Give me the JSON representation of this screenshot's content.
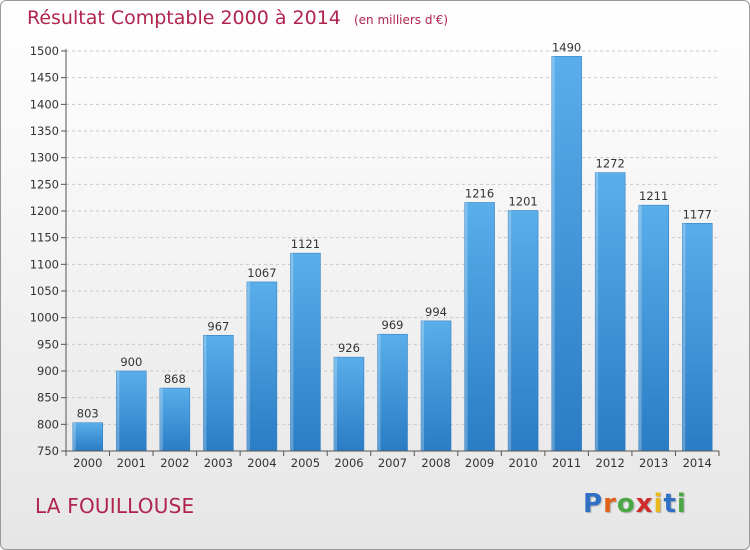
{
  "chart_data": {
    "type": "bar",
    "title": "Résultat Comptable 2000 à 2014",
    "unit": "(en milliers d'€)",
    "categories": [
      "2000",
      "2001",
      "2002",
      "2003",
      "2004",
      "2005",
      "2006",
      "2007",
      "2008",
      "2009",
      "2010",
      "2011",
      "2012",
      "2013",
      "2014"
    ],
    "values": [
      803,
      900,
      868,
      967,
      1067,
      1121,
      926,
      969,
      994,
      1216,
      1201,
      1490,
      1272,
      1211,
      1177
    ],
    "ylim": [
      750,
      1500
    ],
    "yticks": [
      750,
      800,
      850,
      900,
      950,
      1000,
      1050,
      1100,
      1150,
      1200,
      1250,
      1300,
      1350,
      1400,
      1450,
      1500
    ],
    "grid": true,
    "bar_color": "#3d8fd6"
  },
  "footer": {
    "city": "LA FOUILLOUSE"
  },
  "logo": {
    "letters": [
      "P",
      "r",
      "o",
      "x",
      "i",
      "t",
      "i"
    ],
    "colors": [
      "#2f6fc4",
      "#e0621a",
      "#4aa844",
      "#d12c2c",
      "#e8b81d",
      "#2f6fc4",
      "#4aa844"
    ]
  }
}
